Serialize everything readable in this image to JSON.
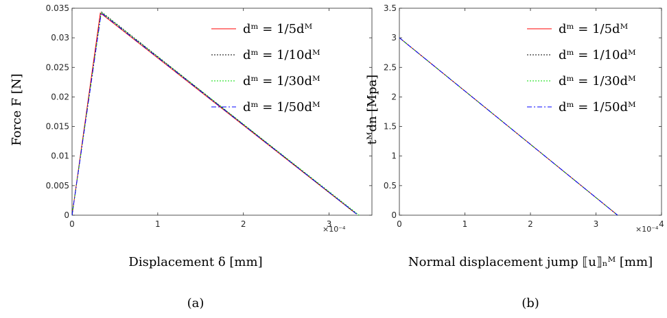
{
  "chart_data": [
    {
      "type": "line",
      "panel_caption": "(a)",
      "xlabel": "Displacement δ [mm]",
      "ylabel": "Force F [N]",
      "xlim": [
        0,
        3.5
      ],
      "ylim": [
        0,
        0.035
      ],
      "x_multiplier": "×10⁻⁴",
      "x_ticks": [
        0,
        1,
        2,
        3
      ],
      "x_tick_labels": [
        "0",
        "1",
        "2",
        "3"
      ],
      "y_ticks": [
        0,
        0.005,
        0.01,
        0.015,
        0.02,
        0.025,
        0.03,
        0.035
      ],
      "y_tick_labels": [
        "0",
        "0.005",
        "0.01",
        "0.015",
        "0.02",
        "0.025",
        "0.03",
        "0.035"
      ],
      "grid": false,
      "legend_position": "top-right",
      "series": [
        {
          "name": "dᵐ = 1/5dᴹ",
          "color": "#ff0000",
          "dash": "solid",
          "x": [
            0,
            0.33,
            3.31
          ],
          "y": [
            0,
            0.0342,
            0.0003
          ]
        },
        {
          "name": "dᵐ = 1/10dᴹ",
          "color": "#000000",
          "dash": "dotted",
          "x": [
            0,
            0.34,
            3.32
          ],
          "y": [
            0,
            0.0344,
            0.0002
          ]
        },
        {
          "name": "dᵐ = 1/30dᴹ",
          "color": "#00dd00",
          "dash": "dotted",
          "x": [
            0,
            0.34,
            3.35
          ],
          "y": [
            0,
            0.0343,
            0.0
          ]
        },
        {
          "name": "dᵐ = 1/50dᴹ",
          "color": "#0000ff",
          "dash": "dashdot",
          "x": [
            0,
            0.34,
            3.33
          ],
          "y": [
            0,
            0.0342,
            0.0001
          ]
        }
      ]
    },
    {
      "type": "line",
      "panel_caption": "(b)",
      "xlabel": "Normal displacement jump ⟦u⟧ₙᴹ [mm]",
      "ylabel": "tᴹdn [Mpa]",
      "xlim": [
        0,
        4
      ],
      "ylim": [
        0,
        3.5
      ],
      "x_multiplier": "×10⁻⁴",
      "x_ticks": [
        0,
        1,
        2,
        3,
        4
      ],
      "x_tick_labels": [
        "0",
        "1",
        "2",
        "3",
        "4"
      ],
      "y_ticks": [
        0,
        0.5,
        1,
        1.5,
        2,
        2.5,
        3,
        3.5
      ],
      "y_tick_labels": [
        "0",
        "0.5",
        "1",
        "1.5",
        "2",
        "2.5",
        "3",
        "3.5"
      ],
      "grid": false,
      "legend_position": "top-right",
      "series": [
        {
          "name": "dᵐ = 1/5dᴹ",
          "color": "#ff0000",
          "dash": "solid",
          "x": [
            0,
            3.33
          ],
          "y": [
            3,
            0
          ]
        },
        {
          "name": "dᵐ = 1/10dᴹ",
          "color": "#000000",
          "dash": "dotted",
          "x": [
            0,
            3.33
          ],
          "y": [
            3,
            0
          ]
        },
        {
          "name": "dᵐ = 1/30dᴹ",
          "color": "#00dd00",
          "dash": "dotted",
          "x": [
            0,
            3.33
          ],
          "y": [
            3,
            0
          ]
        },
        {
          "name": "dᵐ = 1/50dᴹ",
          "color": "#0000ff",
          "dash": "dashdot",
          "x": [
            0,
            3.33
          ],
          "y": [
            3,
            0
          ]
        }
      ]
    }
  ]
}
